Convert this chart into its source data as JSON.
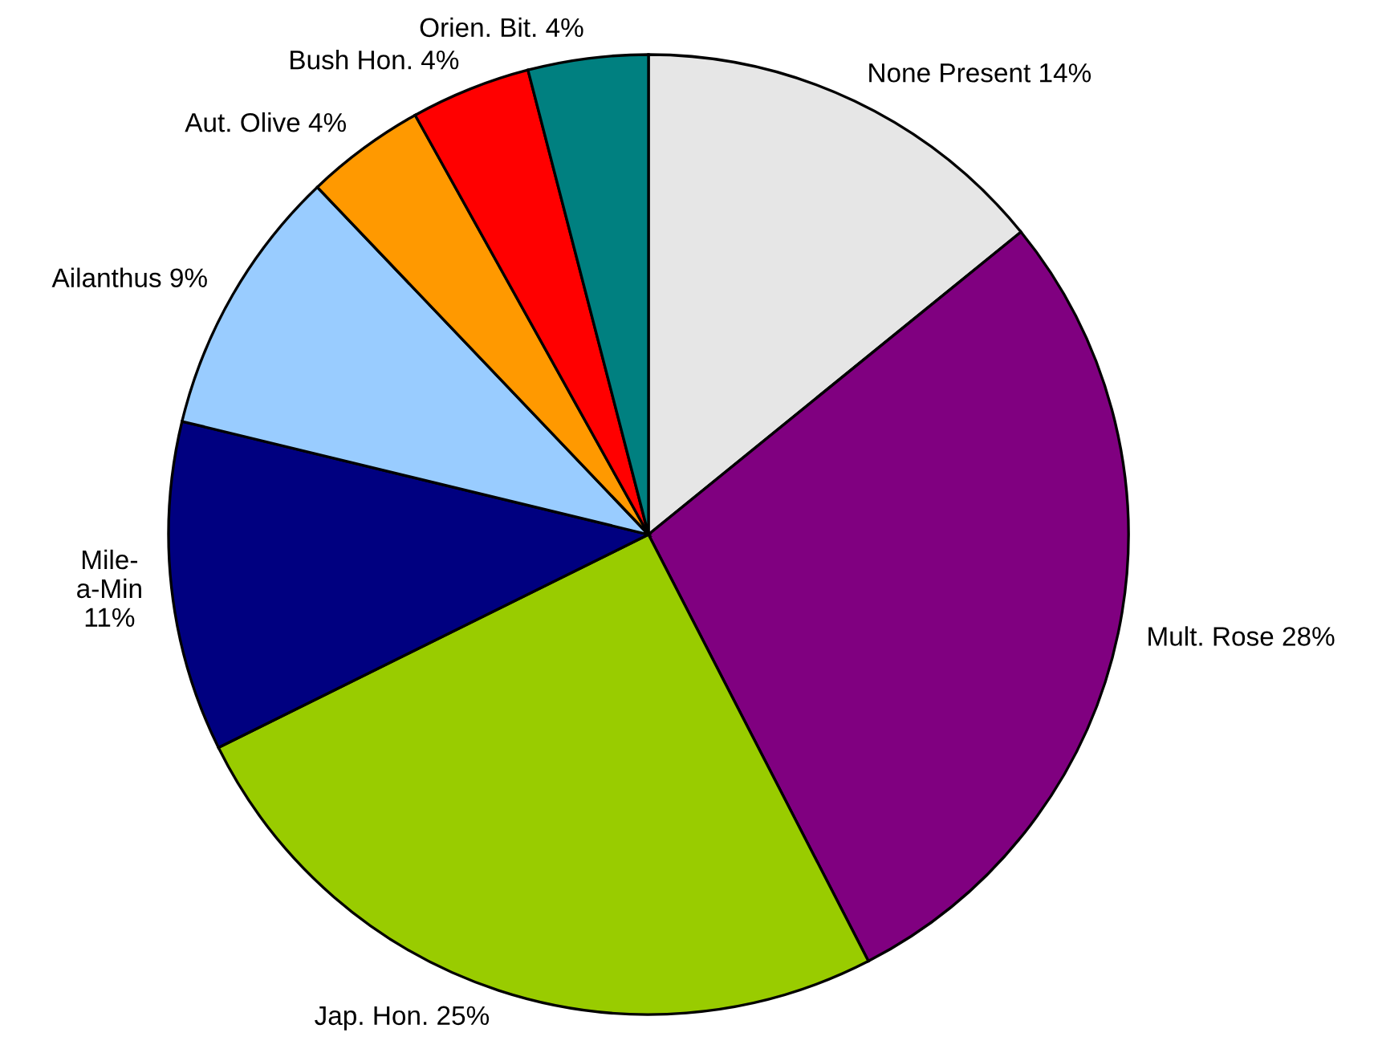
{
  "chart_data": {
    "type": "pie",
    "categories": [
      "None Present",
      "Mult. Rose",
      "Jap. Hon.",
      "Mile-\na-Min",
      "Ailanthus",
      "Aut. Olive",
      "Bush Hon.",
      "Orien. Bit."
    ],
    "values": [
      14,
      28,
      25,
      11,
      9,
      4,
      4,
      4
    ],
    "value_labels": [
      "14%",
      "28%",
      "25%",
      "11%",
      "9%",
      "4%",
      "4%",
      "4%"
    ],
    "colors": [
      "#e6e6e6",
      "#800080",
      "#99cc00",
      "#000080",
      "#99ccff",
      "#ff9900",
      "#ff0000",
      "#008080"
    ],
    "legend": false
  }
}
